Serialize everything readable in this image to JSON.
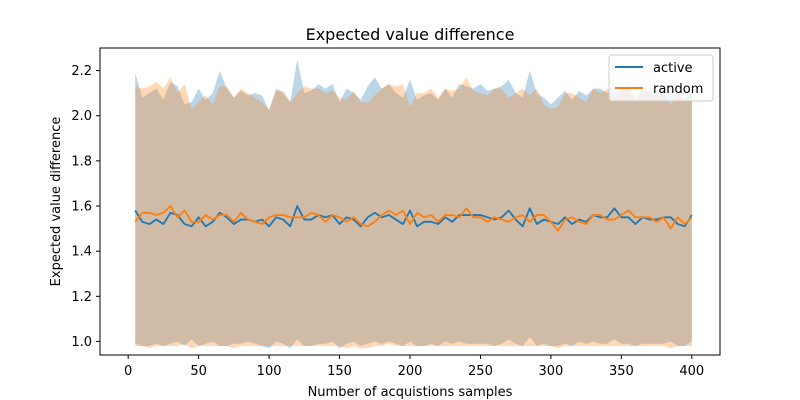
{
  "chart_data": {
    "type": "line",
    "title": "Expected value difference",
    "xlabel": "Number of acquistions samples",
    "ylabel": "Expected value difference",
    "xlim": [
      -20,
      420
    ],
    "ylim": [
      0.94,
      2.3
    ],
    "xticks": [
      0,
      50,
      100,
      150,
      200,
      250,
      300,
      350,
      400
    ],
    "yticks": [
      1.0,
      1.2,
      1.4,
      1.6,
      1.8,
      2.0,
      2.2
    ],
    "ytick_labels": [
      "1.0",
      "1.2",
      "1.4",
      "1.6",
      "1.8",
      "2.0",
      "2.2"
    ],
    "grid": false,
    "legend_position": "top-right",
    "x": [
      5,
      10,
      15,
      20,
      25,
      30,
      35,
      40,
      45,
      50,
      55,
      60,
      65,
      70,
      75,
      80,
      85,
      90,
      95,
      100,
      105,
      110,
      115,
      120,
      125,
      130,
      135,
      140,
      145,
      150,
      155,
      160,
      165,
      170,
      175,
      180,
      185,
      190,
      195,
      200,
      205,
      210,
      215,
      220,
      225,
      230,
      235,
      240,
      245,
      250,
      255,
      260,
      265,
      270,
      275,
      280,
      285,
      290,
      295,
      300,
      305,
      310,
      315,
      320,
      325,
      330,
      335,
      340,
      345,
      350,
      355,
      360,
      365,
      370,
      375,
      380,
      385,
      390,
      395,
      400
    ],
    "series": [
      {
        "name": "active",
        "color": "#1f77b4",
        "band_opacity": 0.3,
        "values": [
          1.58,
          1.53,
          1.52,
          1.54,
          1.52,
          1.57,
          1.56,
          1.52,
          1.51,
          1.55,
          1.51,
          1.53,
          1.57,
          1.55,
          1.52,
          1.54,
          1.54,
          1.53,
          1.54,
          1.51,
          1.55,
          1.54,
          1.51,
          1.6,
          1.54,
          1.54,
          1.56,
          1.55,
          1.56,
          1.52,
          1.55,
          1.54,
          1.51,
          1.55,
          1.57,
          1.55,
          1.56,
          1.54,
          1.52,
          1.58,
          1.51,
          1.53,
          1.53,
          1.52,
          1.55,
          1.53,
          1.56,
          1.56,
          1.56,
          1.56,
          1.55,
          1.54,
          1.55,
          1.58,
          1.54,
          1.51,
          1.59,
          1.52,
          1.54,
          1.53,
          1.52,
          1.55,
          1.52,
          1.54,
          1.53,
          1.56,
          1.55,
          1.55,
          1.59,
          1.55,
          1.55,
          1.52,
          1.55,
          1.54,
          1.54,
          1.55,
          1.55,
          1.52,
          1.51,
          1.56
        ],
        "upper": [
          2.19,
          2.08,
          2.1,
          2.12,
          2.07,
          2.15,
          2.13,
          2.05,
          2.06,
          2.12,
          2.07,
          2.1,
          2.2,
          2.12,
          2.08,
          2.11,
          2.09,
          2.1,
          2.09,
          2.02,
          2.12,
          2.1,
          2.06,
          2.25,
          2.1,
          2.11,
          2.14,
          2.12,
          2.14,
          2.06,
          2.12,
          2.1,
          2.07,
          2.13,
          2.17,
          2.12,
          2.14,
          2.1,
          2.08,
          2.16,
          2.07,
          2.09,
          2.1,
          2.07,
          2.12,
          2.08,
          2.14,
          2.13,
          2.12,
          2.14,
          2.11,
          2.12,
          2.13,
          2.16,
          2.1,
          2.08,
          2.2,
          2.1,
          2.08,
          2.05,
          2.08,
          2.11,
          2.07,
          2.11,
          2.09,
          2.12,
          2.12,
          2.1,
          2.14,
          2.12,
          2.12,
          2.07,
          2.11,
          2.11,
          2.11,
          2.12,
          2.12,
          2.09,
          2.08,
          2.12
        ],
        "lower": [
          0.99,
          0.98,
          0.98,
          0.99,
          0.98,
          0.99,
          1.0,
          0.98,
          1.01,
          0.98,
          0.99,
          1.0,
          0.98,
          0.98,
          0.99,
          0.99,
          1.0,
          0.99,
          0.98,
          0.97,
          1.0,
          0.99,
          0.97,
          1.01,
          0.98,
          0.98,
          0.99,
          0.99,
          1.0,
          0.97,
          0.99,
          1.0,
          0.98,
          0.99,
          1.0,
          0.99,
          1.0,
          0.99,
          0.98,
          1.0,
          0.98,
          0.98,
          0.99,
          0.98,
          1.0,
          0.99,
          1.0,
          0.99,
          0.99,
          0.99,
          0.99,
          0.98,
          0.99,
          1.01,
          0.99,
          0.98,
          1.02,
          0.98,
          0.99,
          0.98,
          0.98,
          0.99,
          0.98,
          1.0,
          0.99,
          1.0,
          0.99,
          0.99,
          1.01,
          0.99,
          0.99,
          0.98,
          0.99,
          0.99,
          0.99,
          0.99,
          1.0,
          0.98,
          0.98,
          1.0
        ]
      },
      {
        "name": "random",
        "color": "#ff7f0e",
        "band_opacity": 0.3,
        "values": [
          1.53,
          1.57,
          1.57,
          1.56,
          1.57,
          1.6,
          1.55,
          1.58,
          1.53,
          1.53,
          1.56,
          1.54,
          1.56,
          1.56,
          1.53,
          1.57,
          1.54,
          1.53,
          1.52,
          1.55,
          1.56,
          1.56,
          1.55,
          1.55,
          1.55,
          1.57,
          1.56,
          1.53,
          1.56,
          1.55,
          1.53,
          1.55,
          1.52,
          1.51,
          1.53,
          1.56,
          1.58,
          1.56,
          1.58,
          1.52,
          1.57,
          1.55,
          1.56,
          1.53,
          1.56,
          1.56,
          1.55,
          1.59,
          1.55,
          1.55,
          1.53,
          1.55,
          1.54,
          1.53,
          1.55,
          1.56,
          1.53,
          1.56,
          1.56,
          1.53,
          1.49,
          1.54,
          1.55,
          1.53,
          1.52,
          1.56,
          1.56,
          1.54,
          1.54,
          1.56,
          1.58,
          1.55,
          1.55,
          1.55,
          1.53,
          1.55,
          1.5,
          1.55,
          1.52,
          1.55
        ],
        "upper": [
          2.13,
          2.12,
          2.13,
          2.15,
          2.12,
          2.17,
          2.1,
          2.14,
          2.03,
          2.06,
          2.09,
          2.05,
          2.13,
          2.13,
          2.08,
          2.12,
          2.1,
          2.08,
          2.06,
          2.03,
          2.11,
          2.11,
          2.06,
          2.1,
          2.13,
          2.12,
          2.12,
          2.1,
          2.11,
          2.08,
          2.07,
          2.11,
          2.06,
          2.06,
          2.09,
          2.12,
          2.14,
          2.13,
          2.14,
          2.04,
          2.1,
          2.1,
          2.12,
          2.08,
          2.12,
          2.11,
          2.12,
          2.17,
          2.11,
          2.1,
          2.09,
          2.12,
          2.12,
          2.08,
          2.1,
          2.12,
          2.09,
          2.12,
          2.05,
          2.03,
          2.04,
          2.1,
          2.1,
          2.08,
          2.06,
          2.12,
          2.1,
          2.12,
          2.08,
          2.1,
          2.15,
          2.08,
          2.12,
          2.1,
          2.09,
          2.1,
          2.05,
          2.1,
          2.06,
          2.1
        ],
        "lower": [
          0.98,
          0.98,
          0.97,
          0.98,
          0.98,
          0.98,
          0.98,
          0.99,
          0.97,
          0.98,
          0.98,
          0.98,
          0.98,
          0.98,
          0.97,
          0.98,
          0.98,
          0.98,
          0.98,
          0.98,
          0.98,
          0.98,
          0.98,
          0.98,
          0.98,
          0.98,
          0.98,
          0.98,
          0.98,
          0.98,
          0.97,
          0.98,
          0.97,
          0.97,
          0.98,
          0.98,
          0.99,
          0.98,
          0.98,
          0.98,
          0.98,
          0.98,
          0.98,
          0.98,
          0.98,
          0.98,
          0.98,
          0.98,
          0.98,
          0.98,
          0.98,
          0.98,
          0.98,
          0.98,
          0.98,
          0.98,
          0.98,
          0.98,
          0.98,
          0.98,
          0.97,
          0.98,
          0.98,
          0.98,
          0.98,
          0.98,
          0.98,
          0.98,
          0.98,
          0.98,
          0.98,
          0.98,
          0.98,
          0.98,
          0.98,
          0.98,
          0.97,
          0.98,
          0.98,
          0.98
        ]
      }
    ]
  }
}
